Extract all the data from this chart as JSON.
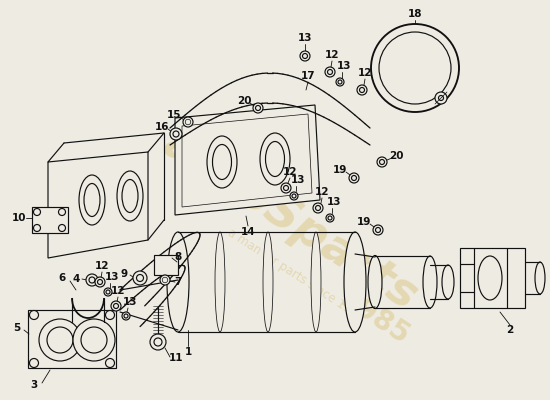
{
  "bg_color": "#eeebe3",
  "line_color": "#111111",
  "lw": 0.85,
  "label_fs": 7.5,
  "wm_color": "#c8a830",
  "wm_alpha": 0.28
}
